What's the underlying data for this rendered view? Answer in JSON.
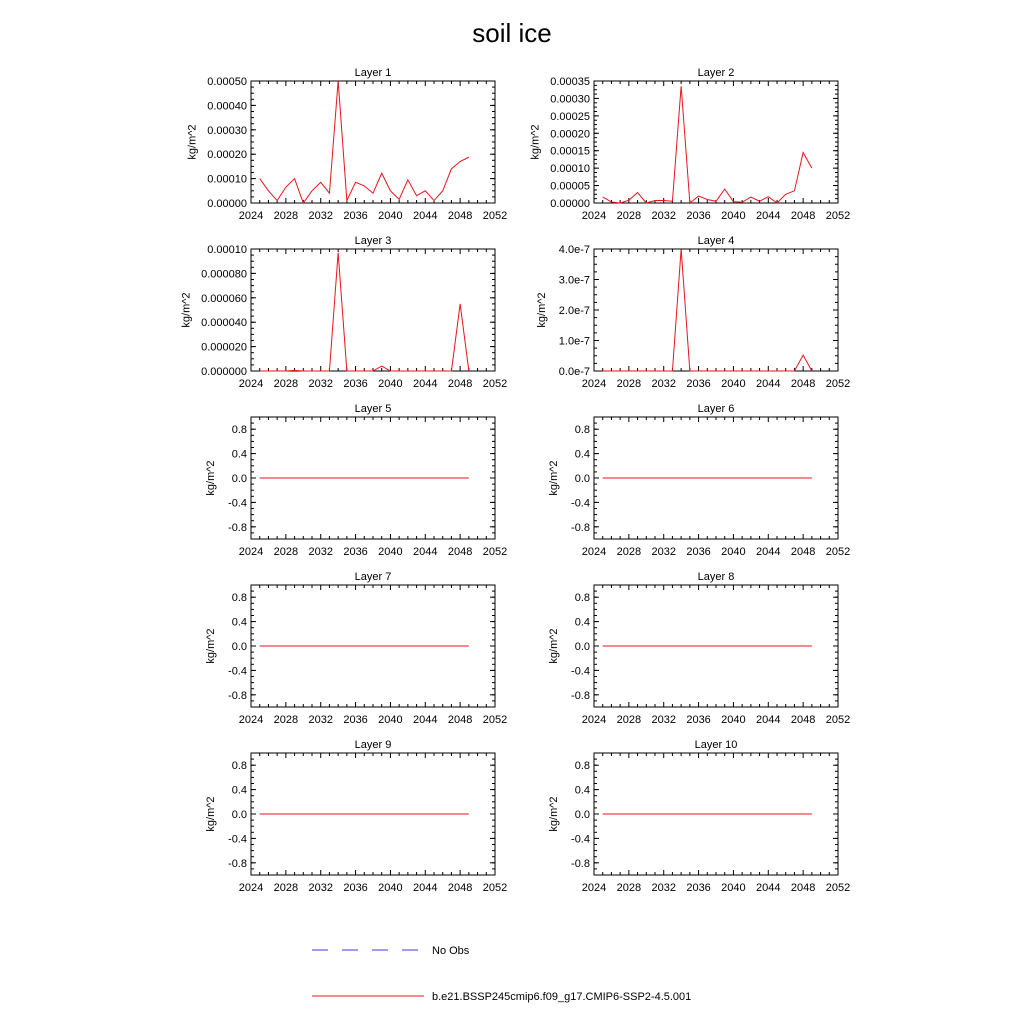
{
  "title": "soil ice",
  "legend": {
    "items": [
      {
        "label": "No Obs",
        "color": "#3b3bd1",
        "style": "dashed"
      },
      {
        "label": "b.e21.BSSP245cmip6.f09_g17.CMIP6-SSP2-4.5.001",
        "color": "#e8141e",
        "style": "solid"
      }
    ]
  },
  "chart_data": [
    {
      "type": "line",
      "title": "Layer 1",
      "ylabel": "kg/m^2",
      "xlim": [
        2024,
        2052
      ],
      "ylim": [
        0,
        0.0005
      ],
      "xticks": [
        2024,
        2028,
        2032,
        2036,
        2040,
        2044,
        2048,
        2052
      ],
      "yticks": [
        0,
        0.0001,
        0.0002,
        0.0003,
        0.0004,
        0.0005
      ],
      "ytick_labels": [
        "0.00000",
        "0.00010",
        "0.00020",
        "0.00030",
        "0.00040",
        "0.00050"
      ],
      "series": [
        {
          "name": "b.e21.BSSP245cmip6.f09_g17.CMIP6-SSP2-4.5.001",
          "color": "#e8141e",
          "x": [
            2025,
            2026,
            2027,
            2028,
            2029,
            2030,
            2031,
            2032,
            2033,
            2034,
            2035,
            2036,
            2037,
            2038,
            2039,
            2040,
            2041,
            2042,
            2043,
            2044,
            2045,
            2046,
            2047,
            2048,
            2049
          ],
          "y": [
            0.0001,
            5e-05,
            1e-05,
            6.5e-05,
            0.0001,
            0.0,
            5e-05,
            8.5e-05,
            4e-05,
            0.0005,
            1e-05,
            8.5e-05,
            7e-05,
            4e-05,
            0.000122,
            5e-05,
            1.5e-05,
            9.5e-05,
            3e-05,
            5e-05,
            1e-05,
            5e-05,
            0.00014,
            0.00017,
            0.000188
          ]
        }
      ]
    },
    {
      "type": "line",
      "title": "Layer 2",
      "ylabel": "kg/m^2",
      "xlim": [
        2024,
        2052
      ],
      "ylim": [
        0,
        0.00035
      ],
      "xticks": [
        2024,
        2028,
        2032,
        2036,
        2040,
        2044,
        2048,
        2052
      ],
      "yticks": [
        0,
        5e-05,
        0.0001,
        0.00015,
        0.0002,
        0.00025,
        0.0003,
        0.00035
      ],
      "ytick_labels": [
        "0.00000",
        "0.00005",
        "0.00010",
        "0.00015",
        "0.00020",
        "0.00025",
        "0.00030",
        "0.00035"
      ],
      "series": [
        {
          "name": "b.e21.BSSP245cmip6.f09_g17.CMIP6-SSP2-4.5.001",
          "color": "#e8141e",
          "x": [
            2025,
            2026,
            2027,
            2028,
            2029,
            2030,
            2031,
            2032,
            2033,
            2034,
            2035,
            2036,
            2037,
            2038,
            2039,
            2040,
            2041,
            2042,
            2043,
            2044,
            2045,
            2046,
            2047,
            2048,
            2049
          ],
          "y": [
            1.7e-05,
            3e-06,
            0.0,
            8e-06,
            3e-05,
            0.0,
            7e-06,
            7e-06,
            5e-06,
            0.000335,
            0.0,
            2e-05,
            1e-05,
            5e-06,
            4e-05,
            4e-06,
            2e-06,
            1.7e-05,
            5e-06,
            1.8e-05,
            0.0,
            2.5e-05,
            3.5e-05,
            0.000145,
            0.0001
          ]
        }
      ]
    },
    {
      "type": "line",
      "title": "Layer 3",
      "ylabel": "kg/m^2",
      "xlim": [
        2024,
        2052
      ],
      "ylim": [
        0,
        0.0001
      ],
      "xticks": [
        2024,
        2028,
        2032,
        2036,
        2040,
        2044,
        2048,
        2052
      ],
      "yticks": [
        0,
        2e-05,
        4e-05,
        6e-05,
        8e-05,
        0.0001
      ],
      "ytick_labels": [
        "0.000000",
        "0.000020",
        "0.000040",
        "0.000060",
        "0.000080",
        "0.00010"
      ],
      "series": [
        {
          "name": "b.e21.BSSP245cmip6.f09_g17.CMIP6-SSP2-4.5.001",
          "color": "#e8141e",
          "x": [
            2025,
            2026,
            2027,
            2028,
            2029,
            2030,
            2031,
            2032,
            2033,
            2034,
            2035,
            2036,
            2037,
            2038,
            2039,
            2040,
            2041,
            2042,
            2043,
            2044,
            2045,
            2046,
            2047,
            2048,
            2049
          ],
          "y": [
            0,
            0,
            0,
            0,
            5e-07,
            0,
            0,
            0,
            0,
            9.7e-05,
            0,
            0,
            0,
            0,
            4e-06,
            0,
            0,
            0,
            0,
            0,
            0,
            0,
            0,
            5.5e-05,
            0
          ]
        }
      ]
    },
    {
      "type": "line",
      "title": "Layer 4",
      "ylabel": "kg/m^2",
      "xlim": [
        2024,
        2052
      ],
      "ylim": [
        0,
        4e-07
      ],
      "xticks": [
        2024,
        2028,
        2032,
        2036,
        2040,
        2044,
        2048,
        2052
      ],
      "yticks": [
        0,
        1e-07,
        2e-07,
        3e-07,
        4e-07
      ],
      "ytick_labels": [
        "0.0e-7",
        "1.0e-7",
        "2.0e-7",
        "3.0e-7",
        "4.0e-7"
      ],
      "series": [
        {
          "name": "b.e21.BSSP245cmip6.f09_g17.CMIP6-SSP2-4.5.001",
          "color": "#e8141e",
          "x": [
            2025,
            2026,
            2027,
            2028,
            2029,
            2030,
            2031,
            2032,
            2033,
            2034,
            2035,
            2036,
            2037,
            2038,
            2039,
            2040,
            2041,
            2042,
            2043,
            2044,
            2045,
            2046,
            2047,
            2048,
            2049
          ],
          "y": [
            0,
            0,
            0,
            0,
            0,
            0,
            0,
            0,
            0,
            4e-07,
            0,
            0,
            0,
            0,
            0,
            0,
            0,
            0,
            0,
            0,
            0,
            0,
            0,
            5.2e-08,
            0
          ]
        }
      ]
    },
    {
      "type": "line",
      "title": "Layer 5",
      "ylabel": "kg/m^2",
      "xlim": [
        2024,
        2052
      ],
      "ylim": [
        -1,
        1
      ],
      "xticks": [
        2024,
        2028,
        2032,
        2036,
        2040,
        2044,
        2048,
        2052
      ],
      "yticks": [
        -0.8,
        -0.4,
        0.0,
        0.4,
        0.8
      ],
      "ytick_labels": [
        "-0.8",
        "-0.4",
        "0.0",
        "0.4",
        "0.8"
      ],
      "series": [
        {
          "name": "b.e21.BSSP245cmip6.f09_g17.CMIP6-SSP2-4.5.001",
          "color": "#e8141e",
          "x": [
            2025,
            2049
          ],
          "y": [
            0,
            0
          ]
        }
      ]
    },
    {
      "type": "line",
      "title": "Layer 6",
      "ylabel": "kg/m^2",
      "xlim": [
        2024,
        2052
      ],
      "ylim": [
        -1,
        1
      ],
      "xticks": [
        2024,
        2028,
        2032,
        2036,
        2040,
        2044,
        2048,
        2052
      ],
      "yticks": [
        -0.8,
        -0.4,
        0.0,
        0.4,
        0.8
      ],
      "ytick_labels": [
        "-0.8",
        "-0.4",
        "0.0",
        "0.4",
        "0.8"
      ],
      "series": [
        {
          "name": "b.e21.BSSP245cmip6.f09_g17.CMIP6-SSP2-4.5.001",
          "color": "#e8141e",
          "x": [
            2025,
            2049
          ],
          "y": [
            0,
            0
          ]
        }
      ]
    },
    {
      "type": "line",
      "title": "Layer 7",
      "ylabel": "kg/m^2",
      "xlim": [
        2024,
        2052
      ],
      "ylim": [
        -1,
        1
      ],
      "xticks": [
        2024,
        2028,
        2032,
        2036,
        2040,
        2044,
        2048,
        2052
      ],
      "yticks": [
        -0.8,
        -0.4,
        0.0,
        0.4,
        0.8
      ],
      "ytick_labels": [
        "-0.8",
        "-0.4",
        "0.0",
        "0.4",
        "0.8"
      ],
      "series": [
        {
          "name": "b.e21.BSSP245cmip6.f09_g17.CMIP6-SSP2-4.5.001",
          "color": "#e8141e",
          "x": [
            2025,
            2049
          ],
          "y": [
            0,
            0
          ]
        }
      ]
    },
    {
      "type": "line",
      "title": "Layer 8",
      "ylabel": "kg/m^2",
      "xlim": [
        2024,
        2052
      ],
      "ylim": [
        -1,
        1
      ],
      "xticks": [
        2024,
        2028,
        2032,
        2036,
        2040,
        2044,
        2048,
        2052
      ],
      "yticks": [
        -0.8,
        -0.4,
        0.0,
        0.4,
        0.8
      ],
      "ytick_labels": [
        "-0.8",
        "-0.4",
        "0.0",
        "0.4",
        "0.8"
      ],
      "series": [
        {
          "name": "b.e21.BSSP245cmip6.f09_g17.CMIP6-SSP2-4.5.001",
          "color": "#e8141e",
          "x": [
            2025,
            2049
          ],
          "y": [
            0,
            0
          ]
        }
      ]
    },
    {
      "type": "line",
      "title": "Layer 9",
      "ylabel": "kg/m^2",
      "xlim": [
        2024,
        2052
      ],
      "ylim": [
        -1,
        1
      ],
      "xticks": [
        2024,
        2028,
        2032,
        2036,
        2040,
        2044,
        2048,
        2052
      ],
      "yticks": [
        -0.8,
        -0.4,
        0.0,
        0.4,
        0.8
      ],
      "ytick_labels": [
        "-0.8",
        "-0.4",
        "0.0",
        "0.4",
        "0.8"
      ],
      "series": [
        {
          "name": "b.e21.BSSP245cmip6.f09_g17.CMIP6-SSP2-4.5.001",
          "color": "#e8141e",
          "x": [
            2025,
            2049
          ],
          "y": [
            0,
            0
          ]
        }
      ]
    },
    {
      "type": "line",
      "title": "Layer 10",
      "ylabel": "kg/m^2",
      "xlim": [
        2024,
        2052
      ],
      "ylim": [
        -1,
        1
      ],
      "xticks": [
        2024,
        2028,
        2032,
        2036,
        2040,
        2044,
        2048,
        2052
      ],
      "yticks": [
        -0.8,
        -0.4,
        0.0,
        0.4,
        0.8
      ],
      "ytick_labels": [
        "-0.8",
        "-0.4",
        "0.0",
        "0.4",
        "0.8"
      ],
      "series": [
        {
          "name": "b.e21.BSSP245cmip6.f09_g17.CMIP6-SSP2-4.5.001",
          "color": "#e8141e",
          "x": [
            2025,
            2049
          ],
          "y": [
            0,
            0
          ]
        }
      ]
    }
  ]
}
